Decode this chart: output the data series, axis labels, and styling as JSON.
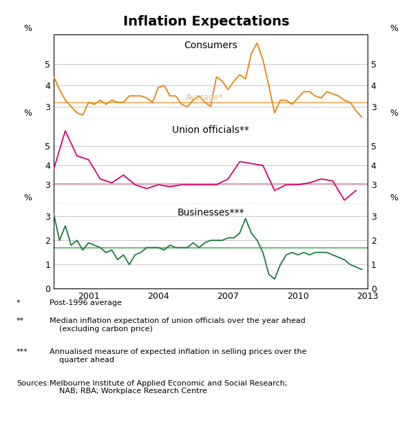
{
  "title": "Inflation Expectations",
  "title_fontsize": 14,
  "subtitle_consumers": "Consumers",
  "subtitle_union": "Union officials**",
  "subtitle_businesses": "Businesses***",
  "avg_label_consumers": "Average*",
  "line_color_consumers": "#E8820C",
  "line_color_union": "#D4006E",
  "line_color_businesses": "#1A7A3C",
  "avg_color_consumers": "#F5B87A",
  "avg_color_union": "#F5A0C0",
  "avg_color_businesses": "#70C080",
  "avg_value_consumers": 3.2,
  "avg_value_union": 3.05,
  "avg_value_businesses": 1.7,
  "grid_color": "#C8C8C8",
  "consumers_x": [
    1999.5,
    1999.75,
    2000.0,
    2000.25,
    2000.5,
    2000.75,
    2001.0,
    2001.25,
    2001.5,
    2001.75,
    2002.0,
    2002.25,
    2002.5,
    2002.75,
    2003.0,
    2003.25,
    2003.5,
    2003.75,
    2004.0,
    2004.25,
    2004.5,
    2004.75,
    2005.0,
    2005.25,
    2005.5,
    2005.75,
    2006.0,
    2006.25,
    2006.5,
    2006.75,
    2007.0,
    2007.25,
    2007.5,
    2007.75,
    2008.0,
    2008.25,
    2008.5,
    2008.75,
    2009.0,
    2009.25,
    2009.5,
    2009.75,
    2010.0,
    2010.25,
    2010.5,
    2010.75,
    2011.0,
    2011.25,
    2011.5,
    2011.75,
    2012.0,
    2012.25,
    2012.5,
    2012.75
  ],
  "consumers_y": [
    4.4,
    3.8,
    3.3,
    3.0,
    2.7,
    2.6,
    3.2,
    3.1,
    3.3,
    3.1,
    3.3,
    3.2,
    3.2,
    3.5,
    3.5,
    3.5,
    3.4,
    3.2,
    3.9,
    4.0,
    3.5,
    3.5,
    3.1,
    3.0,
    3.3,
    3.5,
    3.2,
    3.0,
    4.4,
    4.2,
    3.8,
    4.2,
    4.5,
    4.3,
    5.5,
    6.0,
    5.2,
    4.0,
    2.7,
    3.3,
    3.3,
    3.1,
    3.4,
    3.7,
    3.7,
    3.5,
    3.4,
    3.7,
    3.6,
    3.5,
    3.3,
    3.2,
    2.8,
    2.5
  ],
  "union_x": [
    1999.5,
    2000.0,
    2000.5,
    2001.0,
    2001.5,
    2002.0,
    2002.5,
    2003.0,
    2003.5,
    2004.0,
    2004.5,
    2005.0,
    2005.5,
    2006.0,
    2006.5,
    2007.0,
    2007.5,
    2008.0,
    2008.5,
    2009.0,
    2009.5,
    2010.0,
    2010.5,
    2011.0,
    2011.5,
    2012.0,
    2012.5
  ],
  "union_y": [
    3.8,
    5.8,
    4.5,
    4.3,
    3.3,
    3.1,
    3.5,
    3.0,
    2.8,
    3.0,
    2.9,
    3.0,
    3.0,
    3.0,
    3.0,
    3.3,
    4.2,
    4.1,
    4.0,
    2.7,
    3.0,
    3.0,
    3.1,
    3.3,
    3.2,
    2.2,
    2.7
  ],
  "businesses_x": [
    1999.5,
    1999.75,
    2000.0,
    2000.25,
    2000.5,
    2000.75,
    2001.0,
    2001.25,
    2001.5,
    2001.75,
    2002.0,
    2002.25,
    2002.5,
    2002.75,
    2003.0,
    2003.25,
    2003.5,
    2003.75,
    2004.0,
    2004.25,
    2004.5,
    2004.75,
    2005.0,
    2005.25,
    2005.5,
    2005.75,
    2006.0,
    2006.25,
    2006.5,
    2006.75,
    2007.0,
    2007.25,
    2007.5,
    2007.75,
    2008.0,
    2008.25,
    2008.5,
    2008.75,
    2009.0,
    2009.25,
    2009.5,
    2009.75,
    2010.0,
    2010.25,
    2010.5,
    2010.75,
    2011.0,
    2011.25,
    2011.5,
    2011.75,
    2012.0,
    2012.25,
    2012.5,
    2012.75
  ],
  "businesses_y": [
    3.1,
    2.0,
    2.6,
    1.8,
    2.0,
    1.6,
    1.9,
    1.8,
    1.7,
    1.5,
    1.6,
    1.2,
    1.4,
    1.0,
    1.4,
    1.5,
    1.7,
    1.7,
    1.7,
    1.6,
    1.8,
    1.7,
    1.7,
    1.7,
    1.9,
    1.7,
    1.9,
    2.0,
    2.0,
    2.0,
    2.1,
    2.1,
    2.3,
    2.9,
    2.3,
    2.0,
    1.5,
    0.6,
    0.4,
    1.0,
    1.4,
    1.5,
    1.4,
    1.5,
    1.4,
    1.5,
    1.5,
    1.5,
    1.4,
    1.3,
    1.2,
    1.0,
    0.9,
    0.8
  ],
  "xmin": 1999.5,
  "xmax": 2013.0,
  "xticks": [
    2001,
    2004,
    2007,
    2010,
    2013
  ],
  "consumers_ylim": [
    2.4,
    6.4
  ],
  "consumers_yticks": [
    3,
    4,
    5
  ],
  "union_ylim": [
    2.0,
    6.4
  ],
  "union_yticks": [
    3,
    4,
    5
  ],
  "businesses_ylim": [
    0,
    3.5
  ],
  "businesses_yticks": [
    0,
    1,
    2,
    3
  ],
  "footnote_lines": [
    [
      "*",
      "Post-1996 average"
    ],
    [
      "**",
      "Median inflation expectation of union officials over the year ahead (excluding carbon price)"
    ],
    [
      "***",
      "Annualised measure of expected inflation in selling prices over the quarter ahead"
    ],
    [
      "Sources:",
      "Melbourne Institute of Applied Economic and Social Research; NAB; RBA; Workplace Research Centre"
    ]
  ]
}
